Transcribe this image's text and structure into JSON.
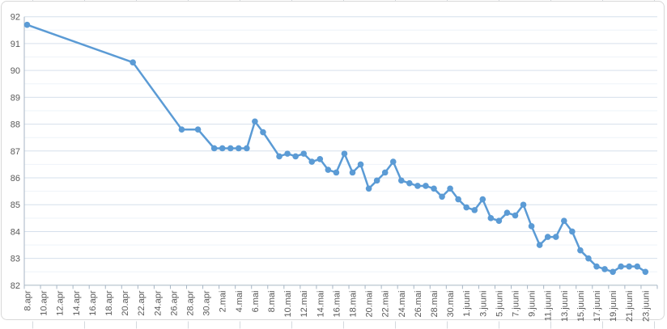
{
  "chart_data": {
    "type": "line",
    "title": "",
    "xlabel": "",
    "ylabel": "",
    "legend": "none",
    "grid": {
      "major_horizontal": true,
      "minor_horizontal": true,
      "vertical": false
    },
    "y_axis": {
      "min": 82,
      "max": 92,
      "major_step": 1,
      "minor_step": 0.5,
      "tick_labels": [
        "82",
        "83",
        "84",
        "85",
        "86",
        "87",
        "88",
        "89",
        "90",
        "91",
        "92"
      ]
    },
    "x_axis": {
      "tick_labels": [
        "8.apr",
        "10.apr",
        "12.apr",
        "14.apr",
        "16.apr",
        "18.apr",
        "20.apr",
        "22.apr",
        "24.apr",
        "26.apr",
        "28.apr",
        "30.apr",
        "2.mai",
        "4.mai",
        "6.mai",
        "8.mai",
        "10.mai",
        "12.mai",
        "14.mai",
        "16.mai",
        "18.mai",
        "20.mai",
        "22.mai",
        "24.mai",
        "26.mai",
        "28.mai",
        "30.mai",
        "1.juuni",
        "3.juuni",
        "5.juuni",
        "7.juuni",
        "9.juuni",
        "11.juuni",
        "13.juuni",
        "15.juuni",
        "17.juuni",
        "19.juuni",
        "21.juuni",
        "23.juuni"
      ]
    },
    "series": [
      {
        "name": "",
        "color": "#5B9BD5",
        "marker": "circle",
        "points": [
          {
            "date": "8.apr",
            "value": 91.7
          },
          {
            "date": "9.apr",
            "value": null
          },
          {
            "date": "10.apr",
            "value": null
          },
          {
            "date": "11.apr",
            "value": null
          },
          {
            "date": "12.apr",
            "value": null
          },
          {
            "date": "13.apr",
            "value": null
          },
          {
            "date": "14.apr",
            "value": null
          },
          {
            "date": "15.apr",
            "value": null
          },
          {
            "date": "16.apr",
            "value": null
          },
          {
            "date": "17.apr",
            "value": null
          },
          {
            "date": "18.apr",
            "value": null
          },
          {
            "date": "19.apr",
            "value": null
          },
          {
            "date": "20.apr",
            "value": null
          },
          {
            "date": "21.apr",
            "value": 90.3
          },
          {
            "date": "22.apr",
            "value": null
          },
          {
            "date": "23.apr",
            "value": null
          },
          {
            "date": "24.apr",
            "value": null
          },
          {
            "date": "25.apr",
            "value": null
          },
          {
            "date": "26.apr",
            "value": null
          },
          {
            "date": "27.apr",
            "value": 87.8
          },
          {
            "date": "28.apr",
            "value": null
          },
          {
            "date": "29.apr",
            "value": 87.8
          },
          {
            "date": "30.apr",
            "value": null
          },
          {
            "date": "1.mai",
            "value": 87.1
          },
          {
            "date": "2.mai",
            "value": 87.1
          },
          {
            "date": "3.mai",
            "value": 87.1
          },
          {
            "date": "4.mai",
            "value": 87.1
          },
          {
            "date": "5.mai",
            "value": 87.1
          },
          {
            "date": "6.mai",
            "value": 88.1
          },
          {
            "date": "7.mai",
            "value": 87.7
          },
          {
            "date": "8.mai",
            "value": null
          },
          {
            "date": "9.mai",
            "value": 86.8
          },
          {
            "date": "10.mai",
            "value": 86.9
          },
          {
            "date": "11.mai",
            "value": 86.8
          },
          {
            "date": "12.mai",
            "value": 86.9
          },
          {
            "date": "13.mai",
            "value": 86.6
          },
          {
            "date": "14.mai",
            "value": 86.7
          },
          {
            "date": "15.mai",
            "value": 86.3
          },
          {
            "date": "16.mai",
            "value": 86.2
          },
          {
            "date": "17.mai",
            "value": 86.9
          },
          {
            "date": "18.mai",
            "value": 86.2
          },
          {
            "date": "19.mai",
            "value": 86.5
          },
          {
            "date": "20.mai",
            "value": 85.6
          },
          {
            "date": "21.mai",
            "value": 85.9
          },
          {
            "date": "22.mai",
            "value": 86.2
          },
          {
            "date": "23.mai",
            "value": 86.6
          },
          {
            "date": "24.mai",
            "value": 85.9
          },
          {
            "date": "25.mai",
            "value": 85.8
          },
          {
            "date": "26.mai",
            "value": 85.7
          },
          {
            "date": "27.mai",
            "value": 85.7
          },
          {
            "date": "28.mai",
            "value": 85.6
          },
          {
            "date": "29.mai",
            "value": 85.3
          },
          {
            "date": "30.mai",
            "value": 85.6
          },
          {
            "date": "31.mai",
            "value": 85.2
          },
          {
            "date": "1.juuni",
            "value": 84.9
          },
          {
            "date": "2.juuni",
            "value": 84.8
          },
          {
            "date": "3.juuni",
            "value": 85.2
          },
          {
            "date": "4.juuni",
            "value": 84.5
          },
          {
            "date": "5.juuni",
            "value": 84.4
          },
          {
            "date": "6.juuni",
            "value": 84.7
          },
          {
            "date": "7.juuni",
            "value": 84.6
          },
          {
            "date": "8.juuni",
            "value": 85.0
          },
          {
            "date": "9.juuni",
            "value": 84.2
          },
          {
            "date": "10.juuni",
            "value": 83.5
          },
          {
            "date": "11.juuni",
            "value": 83.8
          },
          {
            "date": "12.juuni",
            "value": 83.8
          },
          {
            "date": "13.juuni",
            "value": 84.4
          },
          {
            "date": "14.juuni",
            "value": 84.0
          },
          {
            "date": "15.juuni",
            "value": 83.3
          },
          {
            "date": "16.juuni",
            "value": 83.0
          },
          {
            "date": "17.juuni",
            "value": 82.7
          },
          {
            "date": "18.juuni",
            "value": 82.6
          },
          {
            "date": "19.juuni",
            "value": 82.5
          },
          {
            "date": "20.juuni",
            "value": 82.7
          },
          {
            "date": "21.juuni",
            "value": 82.7
          },
          {
            "date": "22.juuni",
            "value": 82.7
          },
          {
            "date": "23.juuni",
            "value": 82.5
          }
        ]
      }
    ]
  },
  "style": {
    "accent_line": "#5B9BD5",
    "major_gridline": "#d6e0ec",
    "minor_gridline": "#eef3f9",
    "axis_line": "#a7b6c4",
    "label_text": "#595959",
    "chart_border": "#d8d8d8",
    "worksheet_line": "#d4d9de",
    "background": "#ffffff"
  }
}
